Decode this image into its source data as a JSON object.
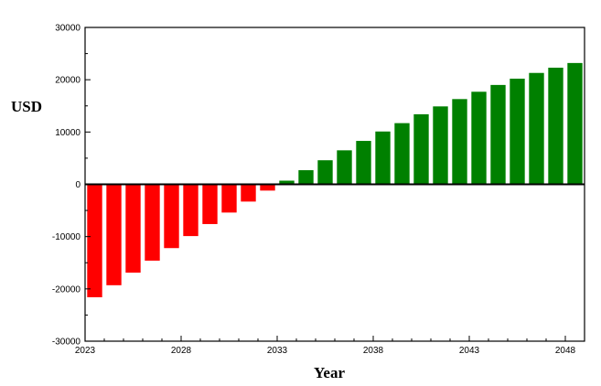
{
  "chart_data": {
    "type": "bar",
    "title": "",
    "xlabel": "Year",
    "ylabel": "USD",
    "xlim": [
      2023,
      2049
    ],
    "ylim": [
      -30000,
      30000
    ],
    "x_ticks": [
      2023,
      2028,
      2033,
      2038,
      2043,
      2048
    ],
    "y_ticks": [
      -30000,
      -20000,
      -10000,
      0,
      10000,
      20000,
      30000
    ],
    "grid": false,
    "legend": "none",
    "colors": {
      "negative": "#ff0000",
      "positive": "#008000"
    },
    "x": [
      2023,
      2024,
      2025,
      2026,
      2027,
      2028,
      2029,
      2030,
      2031,
      2032,
      2033,
      2034,
      2035,
      2036,
      2037,
      2038,
      2039,
      2040,
      2041,
      2042,
      2043,
      2044,
      2045,
      2046,
      2047,
      2048
    ],
    "values": [
      -21600,
      -19300,
      -16900,
      -14600,
      -12200,
      -9900,
      -7600,
      -5400,
      -3300,
      -1200,
      700,
      2700,
      4600,
      6500,
      8300,
      10100,
      11700,
      13400,
      14900,
      16300,
      17700,
      19000,
      20200,
      21300,
      22300,
      23200
    ]
  }
}
